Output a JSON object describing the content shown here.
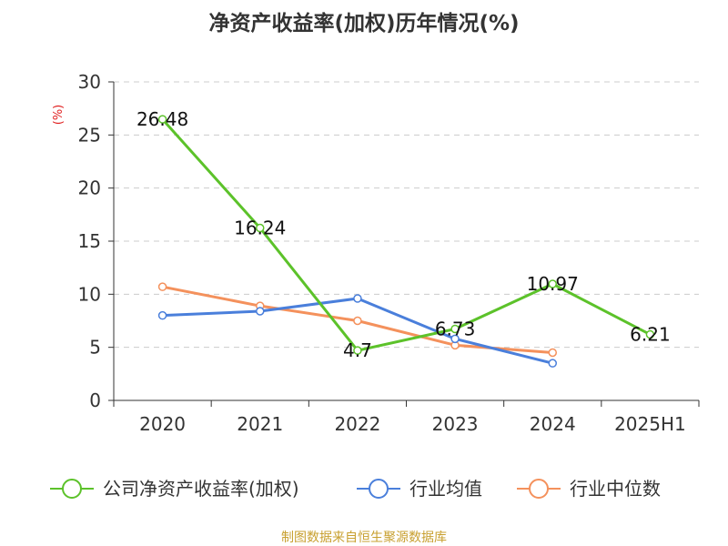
{
  "chart_data": {
    "type": "line",
    "title": "净资产收益率(加权)历年情况(%)",
    "ylabel": "(%)",
    "categories": [
      "2020",
      "2021",
      "2022",
      "2023",
      "2024",
      "2025H1"
    ],
    "y_ticks": [
      "0",
      "5",
      "10",
      "15",
      "20",
      "25",
      "30"
    ],
    "ylim": [
      0,
      30
    ],
    "grid": true,
    "legend_position": "bottom",
    "series": [
      {
        "name": "公司净资产收益率(加权)",
        "color": "#5cc22a",
        "values": [
          26.48,
          16.24,
          4.7,
          6.73,
          10.97,
          6.21
        ],
        "labels": [
          "26.48",
          "16.24",
          "4.7",
          "6.73",
          "10.97",
          "6.21"
        ]
      },
      {
        "name": "行业均值",
        "color": "#4a7fdb",
        "values": [
          8.0,
          8.4,
          9.6,
          5.8,
          3.5,
          null
        ]
      },
      {
        "name": "行业中位数",
        "color": "#f4915c",
        "values": [
          10.7,
          8.9,
          7.5,
          5.2,
          4.5,
          null
        ]
      }
    ]
  },
  "footer": {
    "source": "制图数据来自恒生聚源数据库"
  }
}
